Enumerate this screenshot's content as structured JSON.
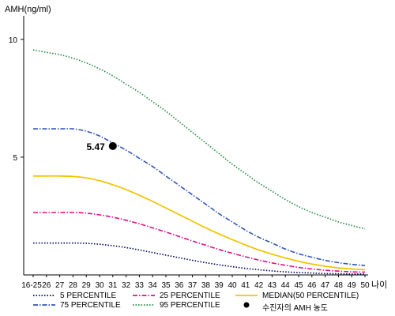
{
  "chart_data": {
    "type": "line",
    "title": "",
    "ylabel": "AMH(ng/ml)",
    "xlabel": "나이",
    "x": [
      "16-25",
      "26",
      "27",
      "28",
      "29",
      "30",
      "31",
      "32",
      "33",
      "34",
      "35",
      "36",
      "37",
      "38",
      "39",
      "40",
      "41",
      "42",
      "43",
      "44",
      "45",
      "46",
      "47",
      "48",
      "49",
      "50"
    ],
    "y_ticks": [
      5,
      10
    ],
    "ylim": [
      0,
      11
    ],
    "grid": false,
    "legend_position": "bottom",
    "series": [
      {
        "name": "5 PERCENTILE",
        "color": "#000060",
        "dash": "dotted",
        "values": [
          1.35,
          1.35,
          1.35,
          1.35,
          1.34,
          1.3,
          1.24,
          1.16,
          1.06,
          0.95,
          0.84,
          0.73,
          0.62,
          0.52,
          0.43,
          0.35,
          0.28,
          0.22,
          0.17,
          0.13,
          0.1,
          0.08,
          0.06,
          0.05,
          0.04,
          0.04
        ]
      },
      {
        "name": "75 PERCENTILE",
        "color": "#3355bb",
        "dash": "dashdot",
        "values": [
          6.2,
          6.2,
          6.2,
          6.2,
          6.1,
          5.9,
          5.6,
          5.3,
          4.95,
          4.6,
          4.2,
          3.8,
          3.4,
          3.0,
          2.6,
          2.25,
          1.9,
          1.6,
          1.35,
          1.1,
          0.9,
          0.75,
          0.62,
          0.52,
          0.45,
          0.4
        ]
      },
      {
        "name": "25 PERCENTILE",
        "color": "#dd1188",
        "dash": "dashdot",
        "values": [
          2.65,
          2.65,
          2.65,
          2.65,
          2.62,
          2.55,
          2.45,
          2.32,
          2.17,
          2.0,
          1.82,
          1.63,
          1.44,
          1.26,
          1.08,
          0.92,
          0.77,
          0.63,
          0.51,
          0.41,
          0.32,
          0.25,
          0.2,
          0.16,
          0.13,
          0.12
        ]
      },
      {
        "name": "95 PERCENTILE",
        "color": "#228844",
        "dash": "dotted",
        "values": [
          9.55,
          9.45,
          9.35,
          9.2,
          9.0,
          8.75,
          8.45,
          8.1,
          7.75,
          7.35,
          6.95,
          6.5,
          6.05,
          5.6,
          5.15,
          4.7,
          4.3,
          3.9,
          3.55,
          3.2,
          2.9,
          2.65,
          2.45,
          2.25,
          2.1,
          1.95
        ]
      },
      {
        "name": "MEDIAN(50 PERCENTILE)",
        "color": "#f5c400",
        "dash": "solid",
        "values": [
          4.2,
          4.2,
          4.2,
          4.18,
          4.12,
          4.0,
          3.83,
          3.62,
          3.38,
          3.12,
          2.84,
          2.56,
          2.28,
          2.0,
          1.74,
          1.5,
          1.27,
          1.06,
          0.88,
          0.72,
          0.58,
          0.46,
          0.37,
          0.3,
          0.25,
          0.22
        ]
      }
    ],
    "marker": {
      "name": "수진자의 AMH 농도",
      "x": "31",
      "y": 5.47,
      "label": "5.47",
      "color": "#000000"
    }
  }
}
